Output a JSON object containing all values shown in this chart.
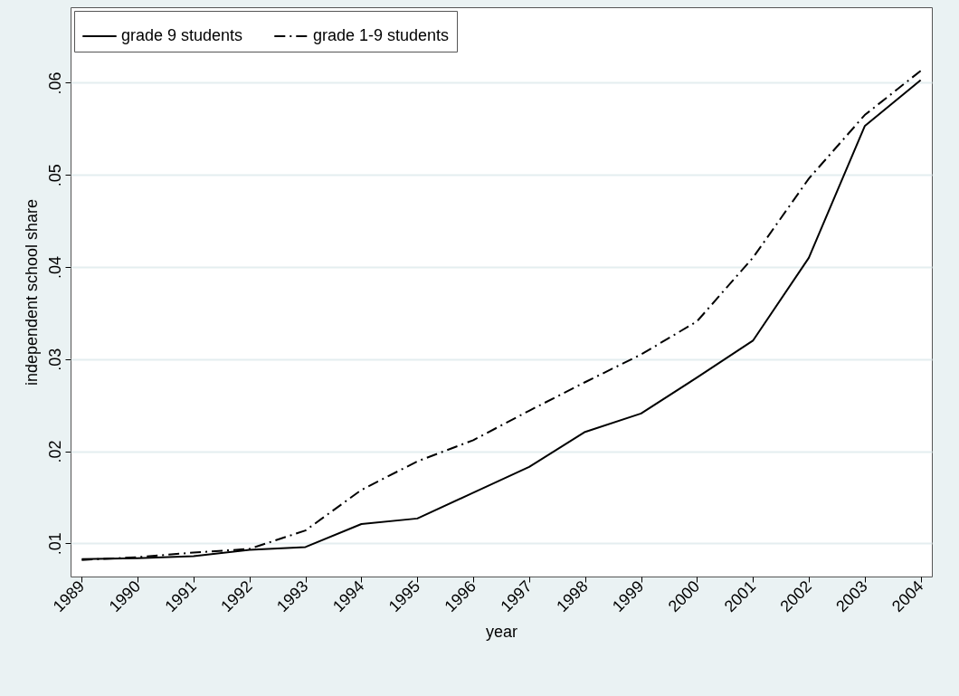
{
  "chart_data": {
    "type": "line",
    "xlabel": "year",
    "ylabel": "independent school share",
    "x": [
      1989,
      1990,
      1991,
      1992,
      1993,
      1994,
      1995,
      1996,
      1997,
      1998,
      1999,
      2000,
      2001,
      2002,
      2003,
      2004
    ],
    "series": [
      {
        "name": "grade 9 students",
        "color": "#000000",
        "line_style": "solid",
        "values": [
          0.0083,
          0.0084,
          0.0086,
          0.0093,
          0.0096,
          0.0121,
          0.0127,
          0.0155,
          0.0183,
          0.0221,
          0.0241,
          0.028,
          0.032,
          0.041,
          0.0553,
          0.0603
        ]
      },
      {
        "name": "grade 1-9 students",
        "color": "#000000",
        "line_style": "dashdot",
        "values": [
          0.0082,
          0.0085,
          0.009,
          0.0094,
          0.0114,
          0.0158,
          0.0189,
          0.0212,
          0.0244,
          0.0275,
          0.0305,
          0.0341,
          0.041,
          0.0496,
          0.0565,
          0.0613
        ]
      }
    ],
    "xlim": [
      1988.8,
      2004.2
    ],
    "xticks": [
      1989,
      1990,
      1991,
      1992,
      1993,
      1994,
      1995,
      1996,
      1997,
      1998,
      1999,
      2000,
      2001,
      2002,
      2003,
      2004
    ],
    "ylim": [
      0.0064,
      0.0682
    ],
    "yticks": [
      {
        "value": 0.01,
        "label": ".01"
      },
      {
        "value": 0.02,
        "label": ".02"
      },
      {
        "value": 0.03,
        "label": ".03"
      },
      {
        "value": 0.04,
        "label": ".04"
      },
      {
        "value": 0.05,
        "label": ".05"
      },
      {
        "value": 0.06,
        "label": ".06"
      }
    ],
    "grid": "y",
    "legend": "top left",
    "marker": "none"
  }
}
